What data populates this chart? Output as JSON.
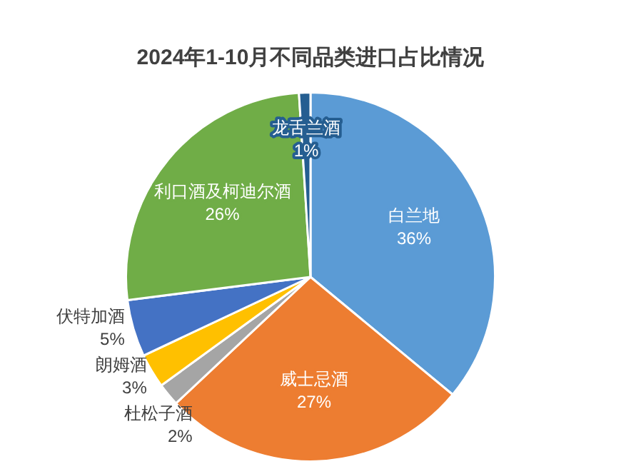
{
  "chart_data": {
    "type": "pie",
    "title": "2024年1-10月不同品类进口占比情况",
    "categories": [
      "白兰地",
      "威士忌酒",
      "杜松子酒",
      "朗姆酒",
      "伏特加酒",
      "利口酒及柯迪尔酒",
      "龙舌兰酒"
    ],
    "values": [
      36,
      27,
      2,
      3,
      5,
      26,
      1
    ],
    "value_labels": [
      "36%",
      "27%",
      "2%",
      "3%",
      "5%",
      "26%",
      "1%"
    ],
    "colors": [
      "#5b9bd5",
      "#ed7d31",
      "#a5a5a5",
      "#ffc000",
      "#4472c4",
      "#70ad47",
      "#255e91"
    ],
    "legend": false
  }
}
